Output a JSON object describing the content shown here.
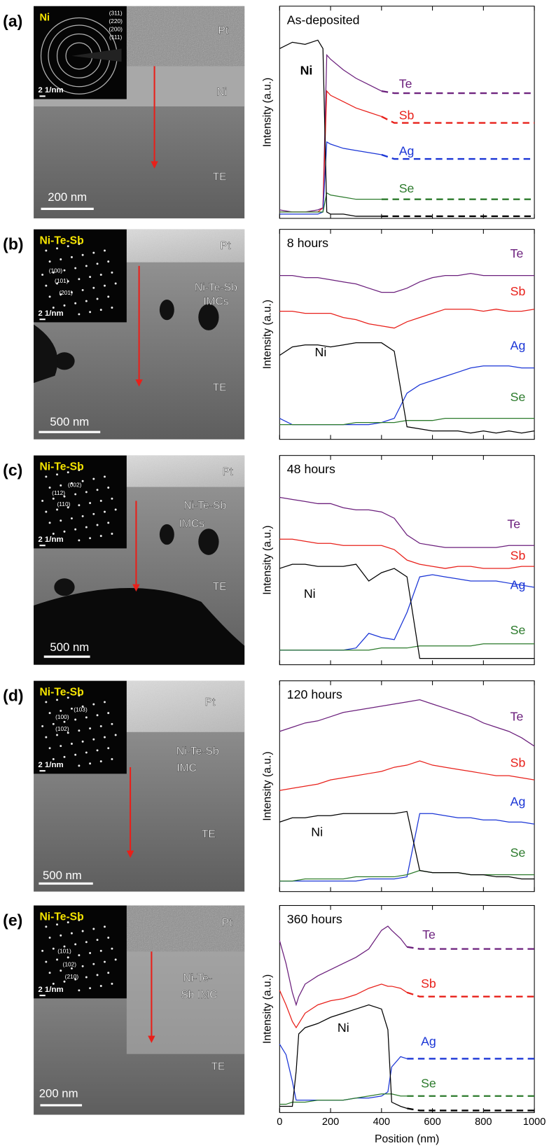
{
  "panels": [
    {
      "letter": "(a)",
      "inset_label": "Ni",
      "indices": [
        "(311)",
        "(220)",
        "(200)",
        "(111)"
      ],
      "inset_scale": "2 1/nm",
      "labels": [
        "Pt",
        "Ni",
        "TE"
      ],
      "scale": "200 nm"
    },
    {
      "letter": "(b)",
      "inset_label": "Ni-Te-Sb",
      "indices": [
        "(100)",
        "(101)",
        "(201)"
      ],
      "inset_scale": "2 1/nm",
      "labels": [
        "Pt",
        "Ni-Te-Sb",
        "IMCs",
        "TE"
      ],
      "scale": "500 nm"
    },
    {
      "letter": "(c)",
      "inset_label": "Ni-Te-Sb",
      "indices": [
        "(002)",
        "(112)",
        "(110)"
      ],
      "inset_scale": "2 1/nm",
      "labels": [
        "Pt",
        "Ni-Te-Sb",
        "IMCs",
        "TE"
      ],
      "scale": "500 nm"
    },
    {
      "letter": "(d)",
      "inset_label": "Ni-Te-Sb",
      "indices": [
        "(103)",
        "(100)",
        "(102)"
      ],
      "inset_scale": "2 1/nm",
      "labels": [
        "Pt",
        "Ni-Te-Sb",
        "IMC",
        "TE"
      ],
      "scale": "500 nm"
    },
    {
      "letter": "(e)",
      "inset_label": "Ni-Te-Sb",
      "indices": [
        "(101)",
        "(102)",
        "(210)"
      ],
      "inset_scale": "2 1/nm",
      "labels": [
        "Pt",
        "Ni-Te-",
        "Sb IMC",
        "TE"
      ],
      "scale": "200 nm"
    }
  ],
  "chart_data": [
    {
      "type": "line",
      "title": "As-deposited",
      "ylabel": "Intensity (a.u.)",
      "xlim": [
        0,
        1000
      ],
      "ylim": [
        0,
        100
      ],
      "xticks": [
        0,
        200,
        400,
        600,
        800,
        1000
      ],
      "xtick_labels": false,
      "dash_after": 400,
      "x": [
        0,
        50,
        100,
        150,
        170,
        185,
        200,
        250,
        300,
        350,
        400,
        450,
        1000
      ],
      "series": [
        {
          "name": "Te",
          "color": "#6b1f7c",
          "values": [
            4,
            3,
            3,
            4,
            5,
            77,
            75,
            70,
            66,
            63,
            60,
            59,
            59
          ]
        },
        {
          "name": "Sb",
          "color": "#e8201a",
          "values": [
            3,
            3,
            3,
            3,
            5,
            60,
            58,
            55,
            52,
            50,
            48,
            45,
            45
          ]
        },
        {
          "name": "Ag",
          "color": "#1a35d6",
          "values": [
            2,
            2,
            2,
            2,
            3,
            36,
            35,
            33,
            32,
            31,
            30,
            28,
            28
          ]
        },
        {
          "name": "Se",
          "color": "#2b7a2b",
          "values": [
            3,
            3,
            3,
            3,
            3,
            12,
            11,
            10,
            9,
            9,
            9,
            9,
            9
          ]
        },
        {
          "name": "Ni",
          "color": "#000000",
          "values": [
            80,
            83,
            82,
            84,
            80,
            3,
            2,
            2,
            1,
            1,
            1,
            1,
            1
          ]
        }
      ]
    },
    {
      "type": "line",
      "title": "8 hours",
      "ylabel": "Intensity (a.u.)",
      "xlim": [
        0,
        1000
      ],
      "ylim": [
        0,
        100
      ],
      "xticks": [
        0,
        200,
        400,
        600,
        800,
        1000
      ],
      "xtick_labels": false,
      "x": [
        0,
        50,
        100,
        150,
        200,
        250,
        300,
        350,
        400,
        450,
        500,
        550,
        600,
        650,
        700,
        750,
        800,
        850,
        900,
        950,
        1000
      ],
      "series": [
        {
          "name": "Te",
          "color": "#6b1f7c",
          "values": [
            78,
            78,
            77,
            77,
            76,
            75,
            74,
            72,
            70,
            70,
            72,
            75,
            77,
            78,
            78,
            79,
            78,
            78,
            78,
            78,
            78
          ]
        },
        {
          "name": "Sb",
          "color": "#e8201a",
          "values": [
            61,
            61,
            60,
            60,
            60,
            58,
            57,
            55,
            54,
            53,
            56,
            58,
            60,
            62,
            62,
            62,
            61,
            62,
            61,
            61,
            62
          ]
        },
        {
          "name": "Ag",
          "color": "#1a35d6",
          "values": [
            10,
            7,
            7,
            7,
            7,
            7,
            7,
            7,
            8,
            10,
            22,
            26,
            28,
            30,
            32,
            34,
            35,
            35,
            35,
            34,
            34
          ]
        },
        {
          "name": "Se",
          "color": "#2b7a2b",
          "values": [
            7,
            7,
            7,
            7,
            7,
            7,
            8,
            8,
            8,
            8,
            9,
            9,
            9,
            10,
            10,
            10,
            10,
            10,
            10,
            10,
            10
          ]
        },
        {
          "name": "Ni",
          "color": "#000000",
          "values": [
            40,
            44,
            45,
            45,
            44,
            45,
            46,
            46,
            46,
            42,
            6,
            5,
            4,
            4,
            4,
            3,
            4,
            3,
            4,
            3,
            4
          ]
        }
      ]
    },
    {
      "type": "line",
      "title": "48 hours",
      "ylabel": "Intensity (a.u.)",
      "xlim": [
        0,
        1000
      ],
      "ylim": [
        0,
        100
      ],
      "xticks": [
        0,
        200,
        400,
        600,
        800,
        1000
      ],
      "xtick_labels": false,
      "x": [
        0,
        50,
        100,
        150,
        200,
        250,
        300,
        350,
        400,
        450,
        500,
        550,
        600,
        650,
        700,
        750,
        800,
        850,
        900,
        950,
        1000
      ],
      "series": [
        {
          "name": "Te",
          "color": "#6b1f7c",
          "values": [
            80,
            79,
            78,
            77,
            77,
            75,
            74,
            74,
            73,
            70,
            62,
            58,
            57,
            56,
            56,
            56,
            56,
            56,
            57,
            57,
            57
          ]
        },
        {
          "name": "Sb",
          "color": "#e8201a",
          "values": [
            60,
            60,
            59,
            58,
            58,
            57,
            57,
            57,
            57,
            55,
            50,
            48,
            47,
            46,
            47,
            47,
            46,
            46,
            46,
            47,
            47
          ]
        },
        {
          "name": "Ag",
          "color": "#1a35d6",
          "values": [
            7,
            7,
            7,
            7,
            7,
            7,
            8,
            15,
            13,
            12,
            25,
            42,
            43,
            42,
            41,
            40,
            40,
            40,
            39,
            38,
            37
          ]
        },
        {
          "name": "Se",
          "color": "#2b7a2b",
          "values": [
            7,
            7,
            7,
            7,
            7,
            7,
            7,
            7,
            8,
            8,
            8,
            9,
            9,
            9,
            9,
            9,
            10,
            10,
            10,
            10,
            10
          ]
        },
        {
          "name": "Ni",
          "color": "#000000",
          "values": [
            46,
            48,
            48,
            47,
            47,
            47,
            48,
            40,
            44,
            46,
            42,
            3,
            3,
            3,
            3,
            3,
            3,
            3,
            3,
            3,
            3
          ]
        }
      ]
    },
    {
      "type": "line",
      "title": "120 hours",
      "ylabel": "Intensity (a.u.)",
      "xlim": [
        0,
        1000
      ],
      "ylim": [
        0,
        100
      ],
      "xticks": [
        0,
        200,
        400,
        600,
        800,
        1000
      ],
      "xtick_labels": false,
      "x": [
        0,
        50,
        100,
        150,
        200,
        250,
        300,
        350,
        400,
        450,
        500,
        550,
        600,
        650,
        700,
        750,
        800,
        850,
        900,
        950,
        1000
      ],
      "series": [
        {
          "name": "Te",
          "color": "#6b1f7c",
          "values": [
            76,
            78,
            80,
            81,
            83,
            85,
            86,
            87,
            88,
            89,
            90,
            91,
            89,
            87,
            85,
            83,
            80,
            78,
            76,
            73,
            69
          ]
        },
        {
          "name": "Sb",
          "color": "#e8201a",
          "values": [
            48,
            49,
            50,
            51,
            53,
            54,
            55,
            56,
            57,
            59,
            60,
            62,
            60,
            59,
            58,
            57,
            56,
            55,
            55,
            54,
            53
          ]
        },
        {
          "name": "Ag",
          "color": "#1a35d6",
          "values": [
            5,
            5,
            5,
            5,
            5,
            5,
            5,
            6,
            6,
            6,
            7,
            37,
            37,
            36,
            35,
            35,
            34,
            34,
            33,
            33,
            32
          ]
        },
        {
          "name": "Se",
          "color": "#2b7a2b",
          "values": [
            5,
            5,
            6,
            6,
            6,
            6,
            7,
            7,
            7,
            7,
            8,
            10,
            9,
            9,
            9,
            8,
            8,
            8,
            8,
            8,
            8
          ]
        },
        {
          "name": "Ni",
          "color": "#000000",
          "values": [
            33,
            35,
            35,
            36,
            36,
            37,
            37,
            37,
            37,
            37,
            38,
            10,
            9,
            9,
            9,
            8,
            8,
            7,
            7,
            6,
            6
          ]
        }
      ]
    },
    {
      "type": "line",
      "title": "360 hours",
      "ylabel": "Intensity (a.u.)",
      "xlabel": "Position (nm)",
      "xlim": [
        0,
        1000
      ],
      "ylim": [
        0,
        100
      ],
      "xticks": [
        0,
        200,
        400,
        600,
        800,
        1000
      ],
      "xtick_labels": true,
      "dash_after": 500,
      "x": [
        0,
        25,
        50,
        65,
        75,
        100,
        150,
        200,
        250,
        300,
        350,
        400,
        425,
        440,
        475,
        500,
        550,
        1000
      ],
      "series": [
        {
          "name": "Te",
          "color": "#6b1f7c",
          "values": [
            83,
            72,
            58,
            52,
            56,
            62,
            66,
            69,
            72,
            75,
            79,
            88,
            90,
            88,
            84,
            80,
            79,
            79
          ]
        },
        {
          "name": "Sb",
          "color": "#e8201a",
          "values": [
            59,
            52,
            44,
            41,
            43,
            48,
            52,
            54,
            55,
            57,
            60,
            62,
            61,
            61,
            60,
            58,
            56,
            56
          ]
        },
        {
          "name": "Ag",
          "color": "#1a35d6",
          "values": [
            33,
            28,
            15,
            6,
            6,
            6,
            6,
            6,
            6,
            7,
            7,
            8,
            10,
            22,
            27,
            26,
            26,
            26
          ]
        },
        {
          "name": "Se",
          "color": "#2b7a2b",
          "values": [
            4,
            4,
            5,
            5,
            5,
            5,
            6,
            6,
            6,
            7,
            8,
            9,
            9,
            9,
            8,
            8,
            8,
            8
          ]
        },
        {
          "name": "Ni",
          "color": "#000000",
          "values": [
            3,
            3,
            3,
            20,
            38,
            41,
            43,
            46,
            48,
            50,
            52,
            50,
            40,
            5,
            3,
            2,
            1,
            1
          ]
        }
      ]
    }
  ]
}
